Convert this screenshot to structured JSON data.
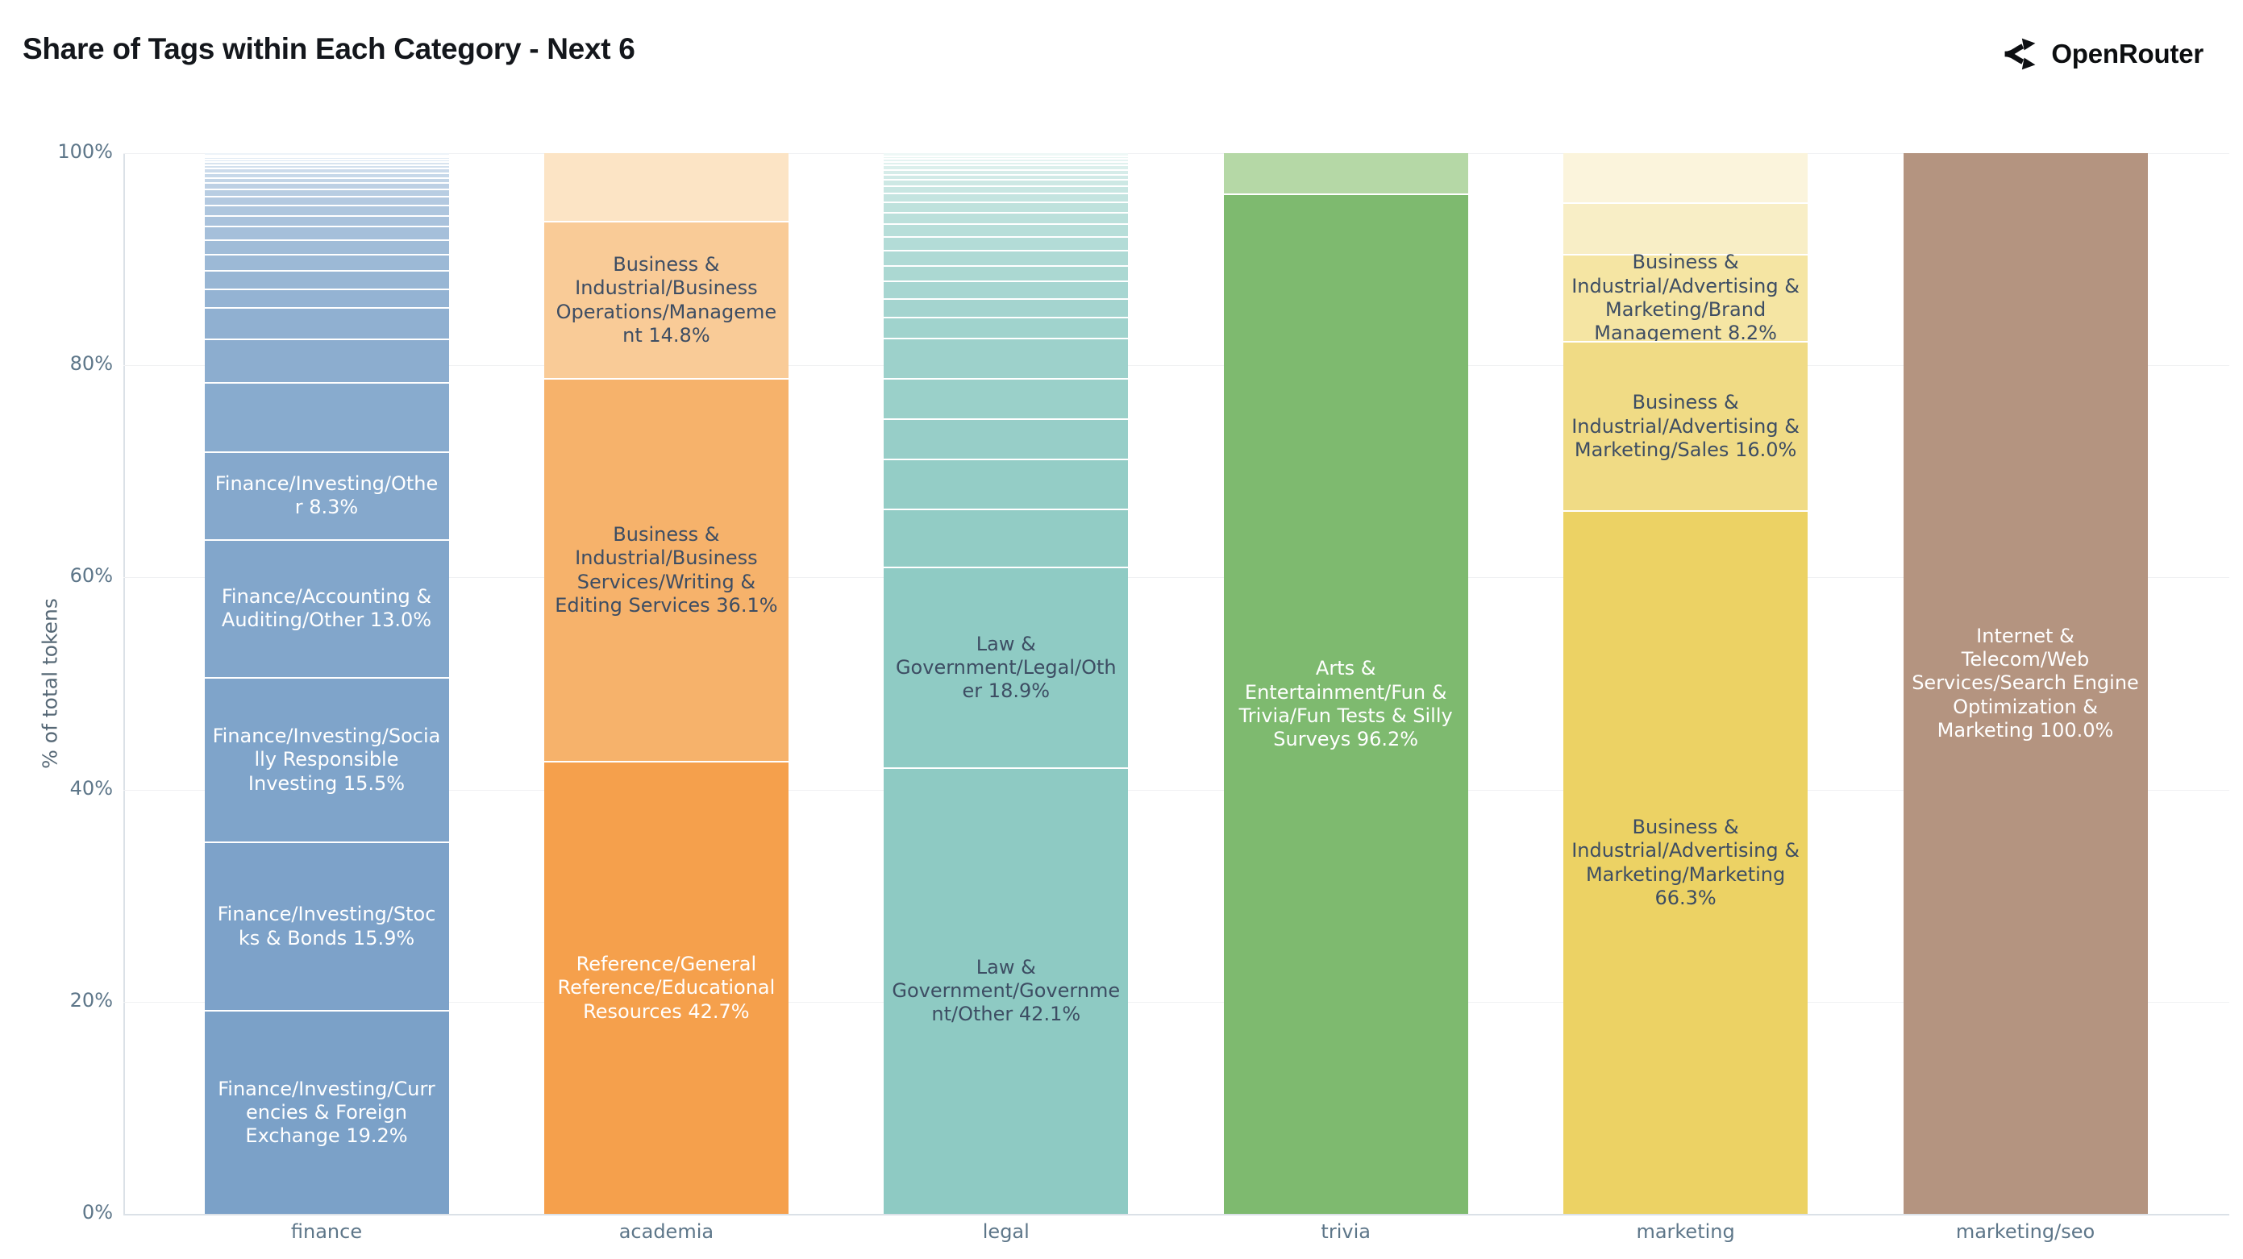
{
  "header": {
    "title": "Share of Tags within Each Category - Next 6",
    "brand": "OpenRouter"
  },
  "y_axis": {
    "title": "% of total tokens",
    "ticks": [
      "100%",
      "80%",
      "60%",
      "40%",
      "20%",
      "0%"
    ]
  },
  "colors": {
    "dark_label": "#3d4d63",
    "light_label": "#ffffff",
    "tick_label": "#5d7689",
    "gridline": "#f0f1f3",
    "axis_line": "#dbe1e7"
  },
  "chart_data": {
    "type": "bar",
    "stacked": true,
    "orientation": "vertical",
    "title": "Share of Tags within Each Category - Next 6",
    "xlabel": "",
    "ylabel": "% of total tokens",
    "ylim": [
      0,
      100
    ],
    "grid": "horizontal",
    "legend": "none",
    "categories": [
      "finance",
      "academia",
      "legal",
      "trivia",
      "marketing",
      "marketing/seo"
    ],
    "bars": [
      {
        "category": "finance",
        "base_color": "#7ba1c8",
        "tint_color": "#edf3f9",
        "segments": [
          {
            "label": "Finance/Investing/Currencies & Foreign Exchange",
            "value": 19.2,
            "text": "light"
          },
          {
            "label": "Finance/Investing/Stocks & Bonds",
            "value": 15.9,
            "text": "light"
          },
          {
            "label": "Finance/Investing/Socially Responsible Investing",
            "value": 15.5,
            "text": "light"
          },
          {
            "label": "Finance/Accounting & Auditing/Other",
            "value": 13.0,
            "text": "light"
          },
          {
            "label": "Finance/Investing/Other",
            "value": 8.3,
            "text": "light"
          },
          {
            "value": 6.5
          },
          {
            "value": 4.1
          },
          {
            "value": 3.0
          },
          {
            "value": 1.75
          },
          {
            "value": 1.75
          },
          {
            "value": 1.5
          },
          {
            "value": 1.4
          },
          {
            "value": 1.25
          },
          {
            "value": 1.0
          },
          {
            "value": 1.0
          },
          {
            "value": 0.8
          },
          {
            "value": 0.7
          },
          {
            "value": 0.6
          },
          {
            "value": 0.5
          },
          {
            "value": 0.45
          },
          {
            "value": 0.4
          },
          {
            "value": 0.35
          },
          {
            "value": 0.3
          },
          {
            "value": 0.25
          },
          {
            "value": 0.2
          },
          {
            "value": 0.15
          },
          {
            "value": 0.15
          }
        ]
      },
      {
        "category": "academia",
        "colors": [
          "#f5a04c",
          "#f6b26b",
          "#f9cb97",
          "#fce4c5"
        ],
        "segments": [
          {
            "label": "Reference/General Reference/Educational Resources",
            "value": 42.7,
            "text": "light"
          },
          {
            "label": "Business & Industrial/Business Services/Writing & Editing Services",
            "value": 36.1,
            "text": "dark"
          },
          {
            "label": "Business & Industrial/Business Operations/Management",
            "value": 14.8,
            "text": "dark"
          },
          {
            "value": 6.4
          }
        ]
      },
      {
        "category": "legal",
        "base_color": "#8ecac3",
        "tint_color": "#eef8f6",
        "segments": [
          {
            "label": "Law & Government/Government/Other",
            "value": 42.1,
            "text": "dark"
          },
          {
            "label": "Law & Government/Legal/Other",
            "value": 18.9,
            "text": "dark"
          },
          {
            "value": 5.5
          },
          {
            "value": 4.7
          },
          {
            "value": 3.8
          },
          {
            "value": 3.8
          },
          {
            "value": 3.8
          },
          {
            "value": 2.0
          },
          {
            "value": 1.75
          },
          {
            "value": 1.6
          },
          {
            "value": 1.5
          },
          {
            "value": 1.4
          },
          {
            "value": 1.3
          },
          {
            "value": 1.2
          },
          {
            "value": 1.1
          },
          {
            "value": 1.0
          },
          {
            "value": 0.8
          },
          {
            "value": 0.7
          },
          {
            "value": 0.6
          },
          {
            "value": 0.5
          },
          {
            "value": 0.45
          },
          {
            "value": 0.4
          },
          {
            "value": 0.35
          },
          {
            "value": 0.3
          },
          {
            "value": 0.25
          },
          {
            "value": 0.2
          }
        ]
      },
      {
        "category": "trivia",
        "colors": [
          "#7eba6f",
          "#b5d8a6"
        ],
        "segments": [
          {
            "label": "Arts & Entertainment/Fun & Trivia/Fun Tests & Silly Surveys",
            "value": 96.2,
            "text": "light"
          },
          {
            "value": 3.8
          }
        ]
      },
      {
        "category": "marketing",
        "colors": [
          "#ecd264",
          "#f0db85",
          "#f5e5a3",
          "#f8eec6",
          "#fbf4dc"
        ],
        "segments": [
          {
            "label": "Business & Industrial/Advertising & Marketing/Marketing",
            "value": 66.3,
            "text": "dark"
          },
          {
            "label": "Business & Industrial/Advertising & Marketing/Sales",
            "value": 16.0,
            "text": "dark"
          },
          {
            "label": "Business & Industrial/Advertising & Marketing/Brand Management",
            "value": 8.2,
            "text": "dark"
          },
          {
            "value": 4.9
          },
          {
            "value": 4.6
          }
        ]
      },
      {
        "category": "marketing/seo",
        "colors": [
          "#b49480"
        ],
        "segments": [
          {
            "label": "Internet & Telecom/Web Services/Search Engine Optimization & Marketing",
            "value": 100.0,
            "text": "light"
          }
        ]
      }
    ]
  }
}
